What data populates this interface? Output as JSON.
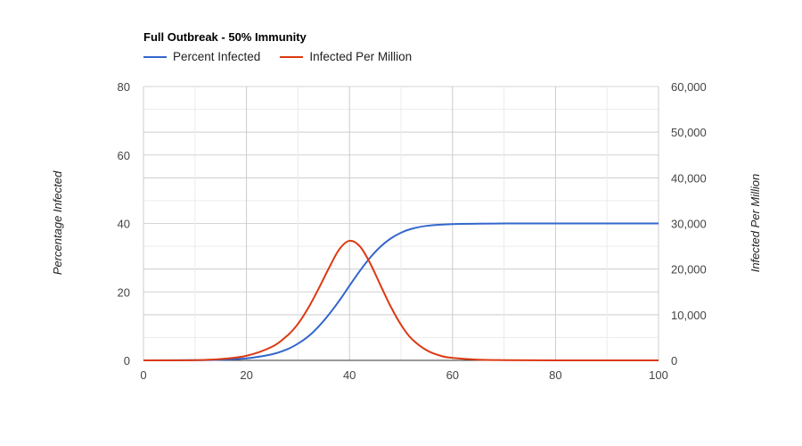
{
  "chart_data": {
    "type": "line",
    "title": "Full Outbreak - 50% Immunity",
    "xlim": [
      0,
      100
    ],
    "x_ticks": [
      "0",
      "20",
      "40",
      "60",
      "80",
      "100"
    ],
    "y_left": {
      "label": "Percentage Infected",
      "lim": [
        0,
        80
      ],
      "ticks": [
        "0",
        "20",
        "40",
        "60",
        "80"
      ]
    },
    "y_right": {
      "label": "Infected Per Million",
      "lim": [
        0,
        60000
      ],
      "ticks": [
        "0",
        "10,000",
        "20,000",
        "30,000",
        "40,000",
        "50,000",
        "60,000"
      ]
    },
    "grid": true,
    "legend_position": "top-left",
    "series": [
      {
        "name": "Percent Infected",
        "axis": "left",
        "color": "#3366cc",
        "x": [
          0,
          10,
          15,
          20,
          25,
          28,
          30,
          32,
          34,
          36,
          38,
          40,
          42,
          44,
          46,
          48,
          50,
          52,
          55,
          60,
          70,
          80,
          100
        ],
        "y": [
          0,
          0.05,
          0.2,
          0.6,
          1.8,
          3.3,
          4.9,
          7.0,
          9.9,
          13.4,
          17.4,
          21.8,
          26.1,
          30.0,
          33.2,
          35.6,
          37.3,
          38.4,
          39.3,
          39.8,
          40.0,
          40.0,
          40.0
        ]
      },
      {
        "name": "Infected Per Million",
        "axis": "right",
        "color": "#dc3912",
        "x": [
          0,
          10,
          15,
          20,
          25,
          28,
          30,
          32,
          34,
          36,
          38,
          40,
          42,
          44,
          46,
          48,
          50,
          52,
          55,
          58,
          60,
          65,
          70,
          80,
          100
        ],
        "y": [
          0,
          50,
          300,
          1000,
          3000,
          5500,
          8000,
          11500,
          15700,
          20200,
          24300,
          26200,
          25000,
          21300,
          16500,
          11800,
          7800,
          4800,
          2200,
          900,
          550,
          150,
          50,
          0,
          0
        ]
      }
    ]
  }
}
